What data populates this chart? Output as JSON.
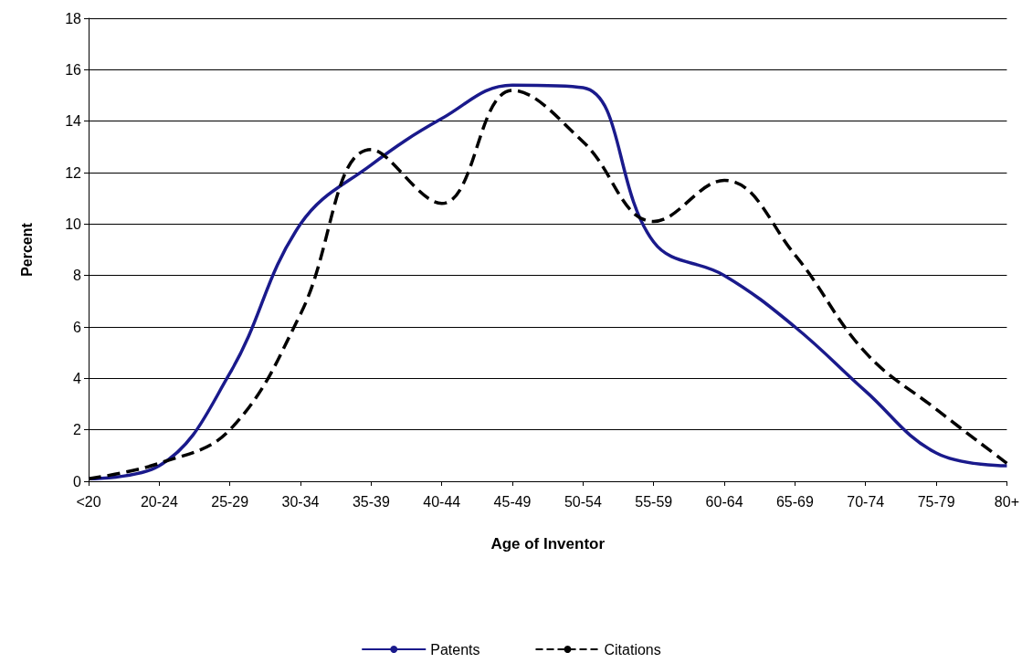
{
  "chart_data": {
    "type": "line",
    "xlabel": "Age of Inventor",
    "ylabel": "Percent",
    "categories": [
      "<20",
      "20-24",
      "25-29",
      "30-34",
      "35-39",
      "40-44",
      "45-49",
      "50-54",
      "55-59",
      "60-64",
      "65-69",
      "70-74",
      "75-79",
      "80+"
    ],
    "ylim": [
      0,
      18
    ],
    "yticks": [
      0,
      2,
      4,
      6,
      8,
      10,
      12,
      14,
      16,
      18
    ],
    "grid": "y",
    "legend": "bottom",
    "marker": "none",
    "series": [
      {
        "name": "Patents",
        "color": "#1a1a8c",
        "line_style": "solid",
        "values": [
          0.1,
          0.6,
          4.2,
          10.0,
          12.3,
          14.1,
          15.4,
          15.3,
          9.3,
          8.0,
          6.0,
          3.5,
          1.1,
          0.6
        ]
      },
      {
        "name": "Citations",
        "color": "#000000",
        "line_style": "dashed",
        "values": [
          0.1,
          0.7,
          2.0,
          6.5,
          12.9,
          10.8,
          15.2,
          13.2,
          10.1,
          11.7,
          8.8,
          5.0,
          2.8,
          0.7
        ]
      }
    ]
  }
}
